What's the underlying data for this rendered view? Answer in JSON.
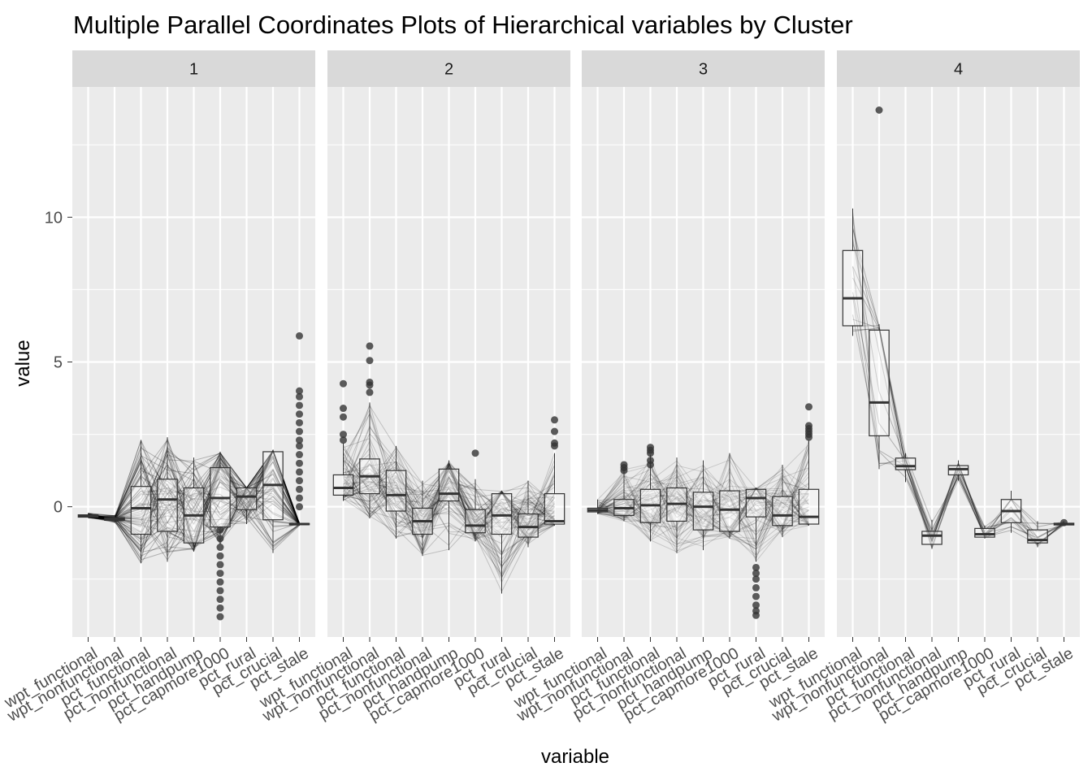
{
  "chart_data": {
    "type": "parallel-coordinates-boxplot",
    "title": "Multiple Parallel Coordinates Plots of Hierarchical variables by Cluster",
    "xlabel": "variable",
    "ylabel": "value",
    "ylim": [
      -4.5,
      14.5
    ],
    "yticks": [
      0,
      5,
      10
    ],
    "variables": [
      "wpt_functional",
      "wpt_nonfunctional",
      "pct_functional",
      "pct_nonfunctional",
      "pct_handpump",
      "pct_capmore1000",
      "pct_rural",
      "pct_crucial",
      "pct_stale"
    ],
    "colors": {
      "panel": "#ebebeb",
      "grid": "#ffffff",
      "strip": "#d9d9d9",
      "line": "#000000",
      "outlier": "#333333"
    },
    "panels": [
      {
        "label": "1",
        "line_alpha": 0.25,
        "boxes": [
          {
            "q1": -0.36,
            "median": -0.32,
            "q3": -0.28,
            "lo": -0.38,
            "hi": -0.22
          },
          {
            "q1": -0.47,
            "median": -0.42,
            "q3": -0.38,
            "lo": -0.55,
            "hi": -0.3
          },
          {
            "q1": -0.95,
            "median": -0.05,
            "q3": 0.7,
            "lo": -1.95,
            "hi": 2.3
          },
          {
            "q1": -0.85,
            "median": 0.25,
            "q3": 0.95,
            "lo": -1.9,
            "hi": 2.4
          },
          {
            "q1": -1.25,
            "median": -0.3,
            "q3": 0.65,
            "lo": -1.55,
            "hi": 1.7
          },
          {
            "q1": -0.7,
            "median": 0.3,
            "q3": 1.35,
            "lo": -1.3,
            "hi": 1.9
          },
          {
            "q1": -0.1,
            "median": 0.35,
            "q3": 0.65,
            "lo": -0.6,
            "hi": 0.65
          },
          {
            "q1": -0.45,
            "median": 0.75,
            "q3": 1.9,
            "lo": -1.6,
            "hi": 1.95
          },
          {
            "q1": -0.62,
            "median": -0.6,
            "q3": -0.58,
            "lo": -0.65,
            "hi": -0.55
          }
        ],
        "outliers": [
          [],
          [],
          [],
          [],
          [],
          [
            -0.8,
            -1.1,
            -1.4,
            -1.7,
            -2.0,
            -2.3,
            -2.6,
            -2.9,
            -3.2,
            -3.5,
            -3.8
          ],
          [],
          [],
          [
            5.9,
            4.0,
            3.8,
            3.5,
            3.2,
            2.9,
            2.6,
            2.3,
            2.1,
            1.8,
            1.5,
            1.2,
            0.9,
            0.6,
            0.3,
            0.0
          ]
        ]
      },
      {
        "label": "2",
        "line_alpha": 0.18,
        "boxes": [
          {
            "q1": 0.4,
            "median": 0.65,
            "q3": 1.1,
            "lo": 0.2,
            "hi": 2.2
          },
          {
            "q1": 0.45,
            "median": 1.05,
            "q3": 1.65,
            "lo": -0.4,
            "hi": 3.6
          },
          {
            "q1": -0.15,
            "median": 0.4,
            "q3": 1.25,
            "lo": -1.1,
            "hi": 2.1
          },
          {
            "q1": -0.95,
            "median": -0.5,
            "q3": -0.05,
            "lo": -1.7,
            "hi": 0.9
          },
          {
            "q1": 0.2,
            "median": 0.45,
            "q3": 1.3,
            "lo": -1.5,
            "hi": 1.6
          },
          {
            "q1": -0.9,
            "median": -0.65,
            "q3": -0.1,
            "lo": -1.2,
            "hi": 0.95
          },
          {
            "q1": -0.95,
            "median": -0.3,
            "q3": 0.45,
            "lo": -3.0,
            "hi": 0.55
          },
          {
            "q1": -1.05,
            "median": -0.7,
            "q3": -0.25,
            "lo": -1.4,
            "hi": 0.9
          },
          {
            "q1": -0.6,
            "median": -0.5,
            "q3": 0.45,
            "lo": -0.65,
            "hi": 1.85
          }
        ],
        "outliers": [
          [
            4.25,
            3.4,
            3.1,
            2.5,
            2.3
          ],
          [
            5.55,
            5.05,
            4.3,
            4.2,
            3.95
          ],
          [],
          [],
          [],
          [
            1.85
          ],
          [],
          [],
          [
            3.0,
            2.6,
            2.2,
            2.1
          ]
        ]
      },
      {
        "label": "3",
        "line_alpha": 0.15,
        "boxes": [
          {
            "q1": -0.18,
            "median": -0.12,
            "q3": -0.05,
            "lo": -0.25,
            "hi": 0.25
          },
          {
            "q1": -0.3,
            "median": -0.05,
            "q3": 0.25,
            "lo": -0.5,
            "hi": 1.3
          },
          {
            "q1": -0.55,
            "median": 0.05,
            "q3": 0.6,
            "lo": -1.2,
            "hi": 1.8
          },
          {
            "q1": -0.5,
            "median": 0.1,
            "q3": 0.65,
            "lo": -1.6,
            "hi": 1.7
          },
          {
            "q1": -0.8,
            "median": 0.0,
            "q3": 0.5,
            "lo": -1.5,
            "hi": 1.6
          },
          {
            "q1": -0.85,
            "median": -0.1,
            "q3": 0.55,
            "lo": -1.1,
            "hi": 1.85
          },
          {
            "q1": -0.35,
            "median": 0.3,
            "q3": 0.6,
            "lo": -1.9,
            "hi": 0.65
          },
          {
            "q1": -0.65,
            "median": -0.3,
            "q3": 0.35,
            "lo": -1.05,
            "hi": 1.45
          },
          {
            "q1": -0.6,
            "median": -0.35,
            "q3": 0.6,
            "lo": -0.65,
            "hi": 2.3
          }
        ],
        "outliers": [
          [],
          [
            1.45,
            1.35,
            1.25
          ],
          [
            2.05,
            1.95,
            1.85,
            1.6,
            1.45
          ],
          [],
          [],
          [],
          [
            -2.1,
            -2.3,
            -2.5,
            -2.8,
            -3.1,
            -3.4,
            -3.6,
            -3.75
          ],
          [],
          [
            3.45,
            2.8,
            2.7,
            2.6,
            2.5,
            2.4
          ]
        ]
      },
      {
        "label": "4",
        "line_alpha": 0.25,
        "boxes": [
          {
            "q1": 6.25,
            "median": 7.2,
            "q3": 8.85,
            "lo": 5.9,
            "hi": 10.3
          },
          {
            "q1": 2.45,
            "median": 3.6,
            "q3": 6.1,
            "lo": 1.3,
            "hi": 6.3
          },
          {
            "q1": 1.28,
            "median": 1.4,
            "q3": 1.68,
            "lo": 0.85,
            "hi": 1.85
          },
          {
            "q1": -1.3,
            "median": -1.0,
            "q3": -0.85,
            "lo": -1.45,
            "hi": -0.45
          },
          {
            "q1": 1.1,
            "median": 1.3,
            "q3": 1.42,
            "lo": 0.9,
            "hi": 1.6
          },
          {
            "q1": -1.05,
            "median": -0.95,
            "q3": -0.75,
            "lo": -1.1,
            "hi": -0.65
          },
          {
            "q1": -0.55,
            "median": -0.15,
            "q3": 0.25,
            "lo": -0.9,
            "hi": 0.55
          },
          {
            "q1": -1.25,
            "median": -1.15,
            "q3": -0.8,
            "lo": -1.4,
            "hi": -0.5
          },
          {
            "q1": -0.63,
            "median": -0.6,
            "q3": -0.57,
            "lo": -0.65,
            "hi": -0.5
          }
        ],
        "outliers": [
          [],
          [
            13.7
          ],
          [],
          [],
          [],
          [],
          [],
          [],
          [
            -0.55
          ]
        ]
      }
    ]
  }
}
